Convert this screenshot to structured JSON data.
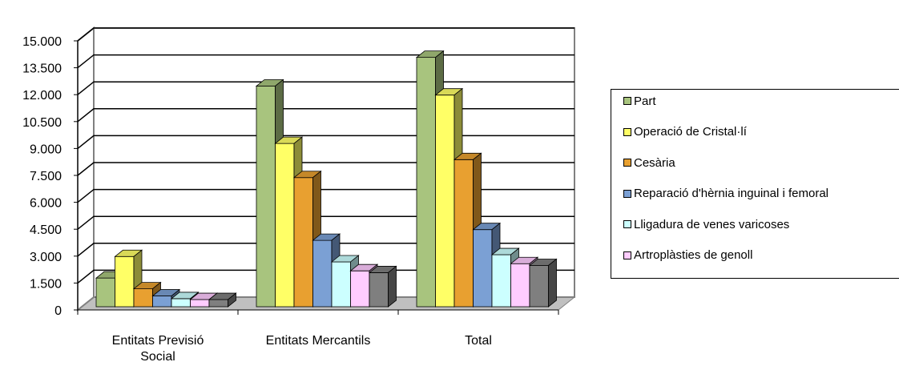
{
  "chart_data": {
    "type": "bar",
    "categories": [
      "Entitats Previsió Social",
      "Entitats Mercantils",
      "Total"
    ],
    "category_label_lines": [
      [
        "Entitats Previsió",
        "Social"
      ],
      [
        "Entitats Mercantils"
      ],
      [
        "Total"
      ]
    ],
    "series": [
      {
        "name": "Part",
        "color": "#a8c47e",
        "values": [
          1600,
          12300,
          13900
        ]
      },
      {
        "name": "Operació de Cristal·lí",
        "color": "#ffff66",
        "values": [
          2800,
          9100,
          11800
        ]
      },
      {
        "name": "Cesària",
        "color": "#e8a030",
        "values": [
          1000,
          7200,
          8200
        ]
      },
      {
        "name": "Reparació d'hèrnia inguinal i femoral",
        "color": "#7ba0d4",
        "values": [
          600,
          3700,
          4300
        ]
      },
      {
        "name": "Lligadura de venes varicoses",
        "color": "#ccffff",
        "values": [
          450,
          2500,
          2900
        ]
      },
      {
        "name": "Artroplàsties de genoll",
        "color": "#ffccff",
        "values": [
          400,
          2000,
          2400
        ]
      },
      {
        "color": "#7f7f7f",
        "values": [
          400,
          1900,
          2300
        ]
      }
    ],
    "y_ticks": [
      "0",
      "1.500",
      "3.000",
      "4.500",
      "6.000",
      "7.500",
      "9.000",
      "10.500",
      "12.000",
      "13.500",
      "15.000"
    ],
    "ylim": [
      0,
      15000
    ],
    "grid": true,
    "legend_position": "right"
  }
}
